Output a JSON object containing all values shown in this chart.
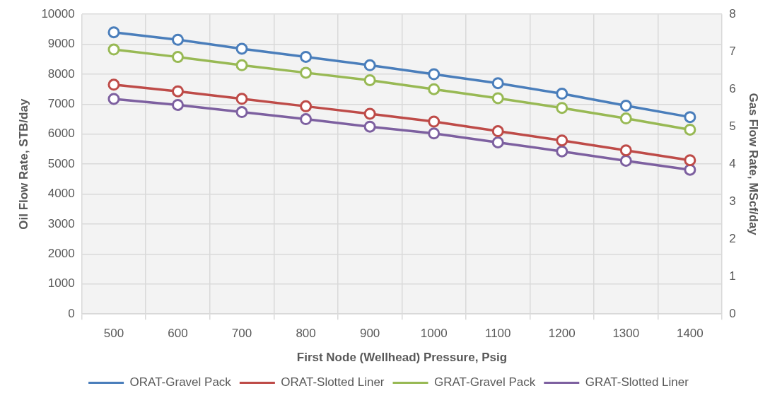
{
  "chart_data": {
    "type": "line",
    "xlabel": "First Node (Wellhead) Pressure, Psig",
    "ylabel": "Oil Flow Rate, STB/day",
    "y2label": "Gas Flow Rate, MScf/day",
    "categories": [
      "500",
      "600",
      "700",
      "800",
      "900",
      "1000",
      "1100",
      "1200",
      "1300",
      "1400"
    ],
    "series": [
      {
        "name": "ORAT-Gravel Pack",
        "color": "#4a7ebb",
        "values": [
          9400,
          9150,
          8850,
          8580,
          8300,
          8000,
          7700,
          7350,
          6950,
          6570
        ]
      },
      {
        "name": "ORAT-Slotted Liner",
        "color": "#be4b48",
        "values": [
          7650,
          7430,
          7180,
          6930,
          6680,
          6420,
          6100,
          5790,
          5460,
          5130
        ]
      },
      {
        "name": "GRAT-Gravel Pack",
        "color": "#98b954",
        "axis": "y2",
        "values": [
          7.06,
          6.86,
          6.64,
          6.44,
          6.24,
          6.0,
          5.76,
          5.5,
          5.22,
          4.92
        ]
      },
      {
        "name": "GRAT-Slotted Liner",
        "color": "#7d60a0",
        "axis": "y2",
        "values": [
          5.74,
          5.58,
          5.39,
          5.2,
          5.0,
          4.82,
          4.58,
          4.34,
          4.09,
          3.85
        ]
      }
    ],
    "ylim": [
      0,
      10000
    ],
    "yticks": [
      0,
      1000,
      2000,
      3000,
      4000,
      5000,
      6000,
      7000,
      8000,
      9000,
      10000
    ],
    "y2lim": [
      0,
      8
    ],
    "y2ticks": [
      0,
      1,
      2,
      3,
      4,
      5,
      6,
      7,
      8
    ],
    "grid": true,
    "legend": "bottom",
    "marker": "circle",
    "line_style": "solid"
  }
}
